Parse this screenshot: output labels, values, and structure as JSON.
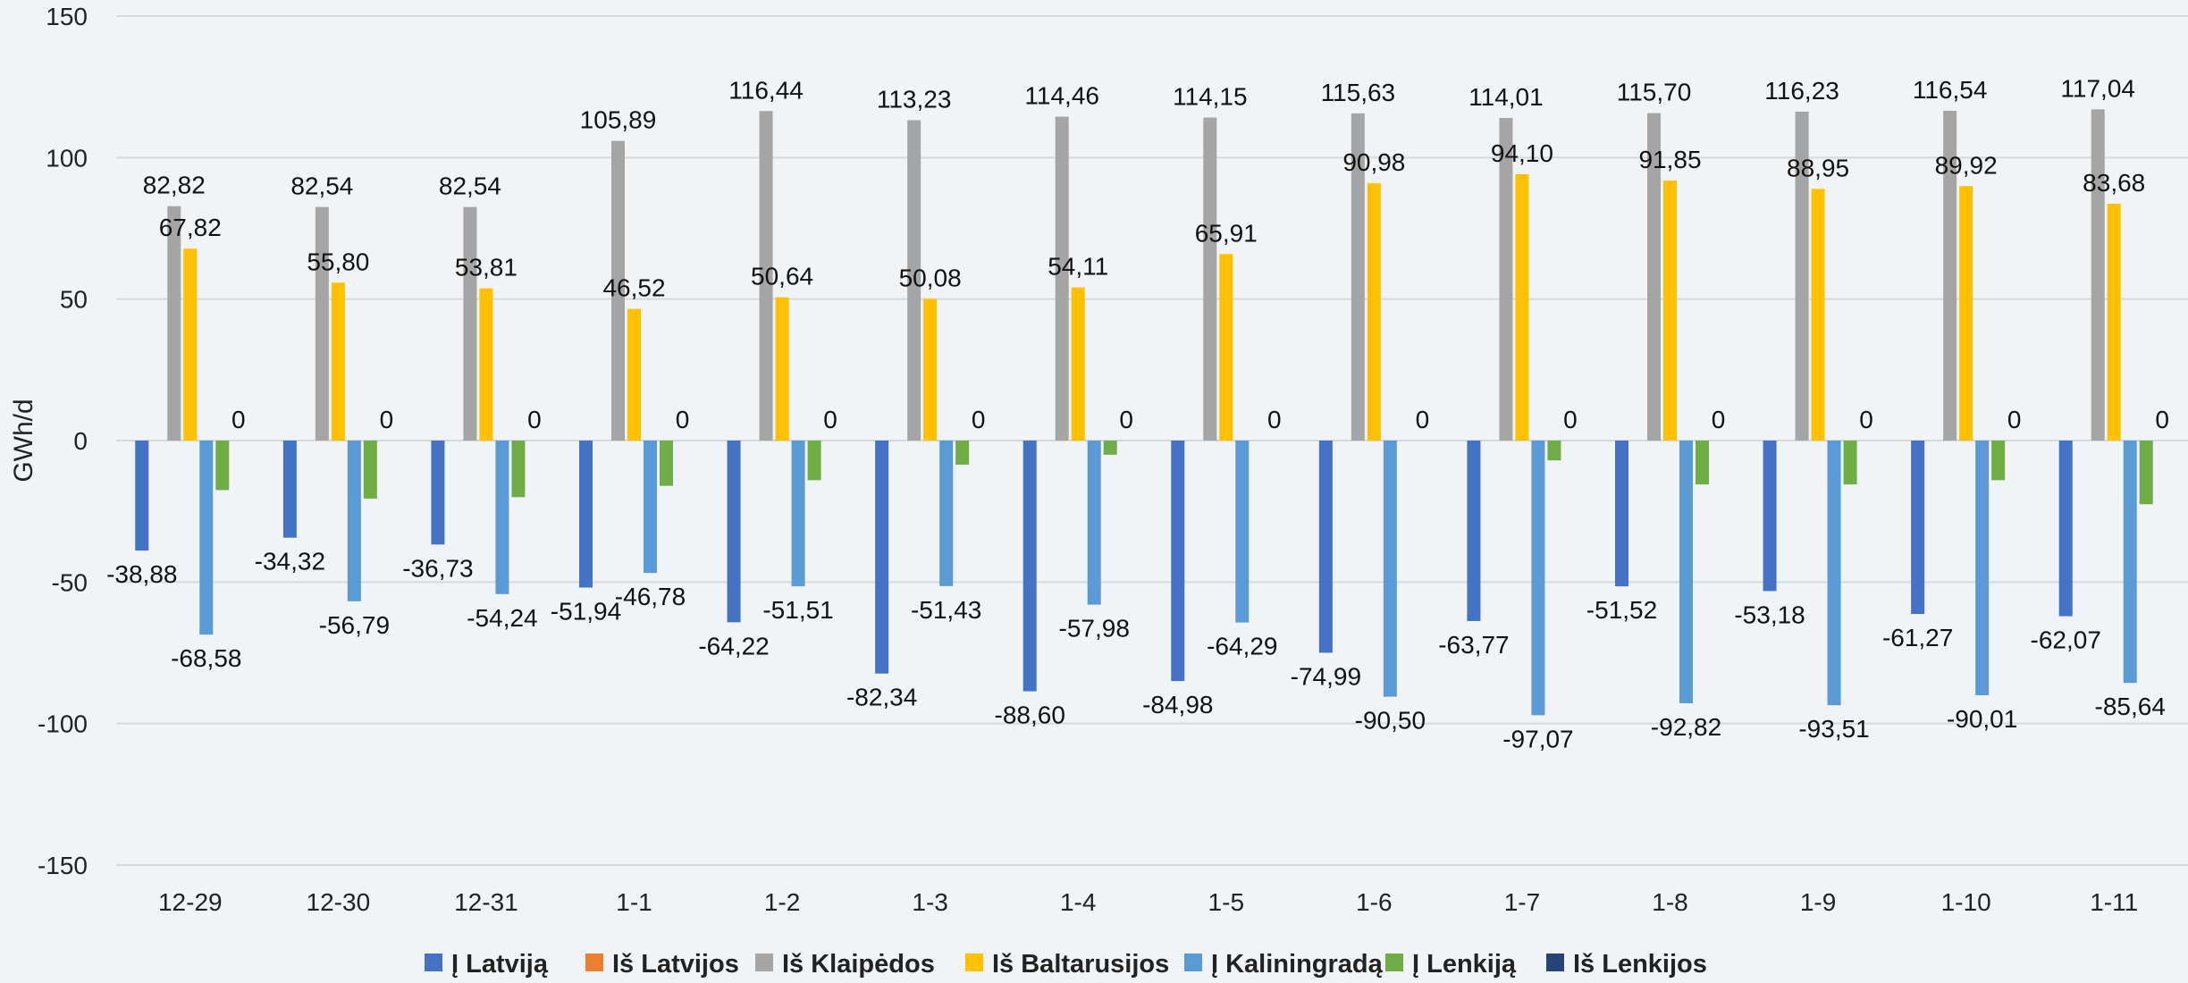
{
  "chart_data": {
    "type": "bar",
    "title": "",
    "xlabel": "",
    "ylabel": "GWh/d",
    "ylim": [
      -150,
      150
    ],
    "yticks": [
      150,
      100,
      50,
      0,
      -50,
      -100,
      -150
    ],
    "grid": true,
    "legend_position": "bottom",
    "categories": [
      "12-29",
      "12-30",
      "12-31",
      "1-1",
      "1-2",
      "1-3",
      "1-4",
      "1-5",
      "1-6",
      "1-7",
      "1-8",
      "1-9",
      "1-10",
      "1-11"
    ],
    "series": [
      {
        "name": "Į Latviją",
        "color": "#4472c4",
        "values": [
          -38.88,
          -34.32,
          -36.73,
          -51.94,
          -64.22,
          -82.34,
          -88.6,
          -84.98,
          -74.99,
          -63.77,
          -51.52,
          -53.18,
          -61.27,
          -62.07
        ],
        "labels": [
          "-38,88",
          "-34,32",
          "-36,73",
          "-51,94",
          "-64,22",
          "-82,34",
          "-88,60",
          "-84,98",
          "-74,99",
          "-63,77",
          "-51,52",
          "-53,18",
          "-61,27",
          "-62,07"
        ]
      },
      {
        "name": "Iš Latvijos",
        "color": "#ed7d31",
        "values": [
          0,
          0,
          0,
          0,
          0,
          0,
          0,
          0,
          0,
          0,
          0,
          0,
          0,
          0
        ],
        "labels": []
      },
      {
        "name": "Iš Klaipėdos",
        "color": "#a5a5a5",
        "values": [
          82.82,
          82.54,
          82.54,
          105.89,
          116.44,
          113.23,
          114.46,
          114.15,
          115.63,
          114.01,
          115.7,
          116.23,
          116.54,
          117.04
        ],
        "labels": [
          "82,82",
          "82,54",
          "82,54",
          "105,89",
          "116,44",
          "113,23",
          "114,46",
          "114,15",
          "115,63",
          "114,01",
          "115,70",
          "116,23",
          "116,54",
          "117,04"
        ]
      },
      {
        "name": "Iš Baltarusijos",
        "color": "#ffc000",
        "values": [
          67.82,
          55.8,
          53.81,
          46.52,
          50.64,
          50.08,
          54.11,
          65.91,
          90.98,
          94.1,
          91.85,
          88.95,
          89.92,
          83.68
        ],
        "labels": [
          "67,82",
          "55,80",
          "53,81",
          "46,52",
          "50,64",
          "50,08",
          "54,11",
          "65,91",
          "90,98",
          "94,10",
          "91,85",
          "88,95",
          "89,92",
          "83,68"
        ]
      },
      {
        "name": "Į Kaliningradą",
        "color": "#5b9bd5",
        "values": [
          -68.58,
          -56.79,
          -54.24,
          -46.78,
          -51.51,
          -51.43,
          -57.98,
          -64.29,
          -90.5,
          -97.07,
          -92.82,
          -93.51,
          -90.01,
          -85.64
        ],
        "labels": [
          "-68,58",
          "-56,79",
          "-54,24",
          "-46,78",
          "-51,51",
          "-51,43",
          "-57,98",
          "-64,29",
          "-90,50",
          "-97,07",
          "-92,82",
          "-93,51",
          "-90,01",
          "-85,64"
        ]
      },
      {
        "name": "Į Lenkiją",
        "color": "#70ad47",
        "values": [
          -17.5,
          -20.5,
          -20,
          -16,
          -14,
          -8.5,
          -5,
          0,
          0,
          -7,
          -15.5,
          -15.5,
          -14,
          -22.5
        ],
        "labels": []
      },
      {
        "name": "Iš Lenkijos",
        "color": "#264478",
        "values": [
          0,
          0,
          0,
          0,
          0,
          0,
          0,
          0,
          0,
          0,
          0,
          0,
          0,
          0
        ],
        "labels": [
          "0",
          "0",
          "0",
          "0",
          "0",
          "0",
          "0",
          "0",
          "0",
          "0",
          "0",
          "0",
          "0",
          "0"
        ]
      }
    ]
  }
}
